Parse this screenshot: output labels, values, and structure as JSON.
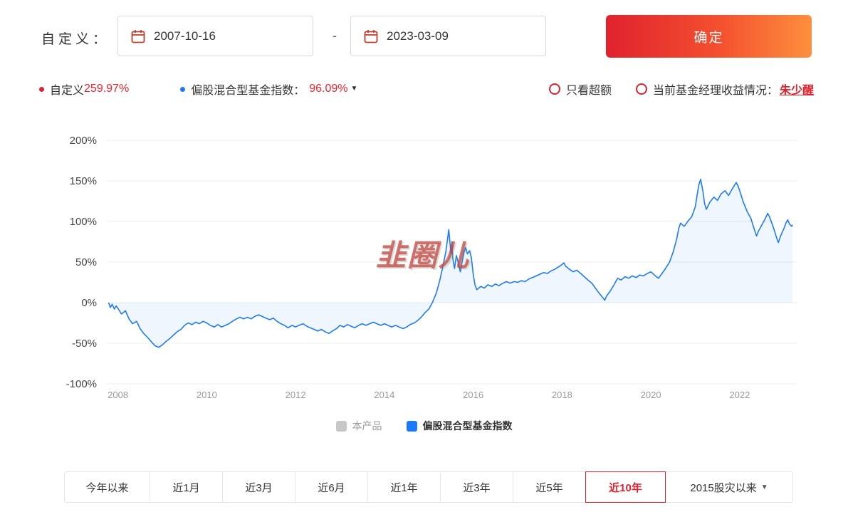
{
  "header": {
    "custom_label": "自定义：",
    "date_start": "2007-10-16",
    "date_end": "2023-03-09",
    "separator": "-",
    "confirm_label": "确定"
  },
  "legend_bar": {
    "series1_label": "自定义",
    "series1_value": "259.97%",
    "series2_label": "偏股混合型基金指数：",
    "series2_value": "96.09%",
    "excess_only_label": "只看超额",
    "manager_label": "当前基金经理收益情况：",
    "manager_name": "朱少醒"
  },
  "chart_data": {
    "type": "line",
    "title": "",
    "xlabel": "",
    "ylabel": "",
    "watermark": "韭圈儿",
    "grid": true,
    "legend_position": "bottom",
    "y_ticks": [
      "200%",
      "150%",
      "100%",
      "50%",
      "0%",
      "-50%",
      "-100%"
    ],
    "y_tick_values": [
      200,
      150,
      100,
      50,
      0,
      -50,
      -100
    ],
    "ylim": [
      -100,
      200
    ],
    "x_ticks": [
      "2008",
      "2010",
      "2012",
      "2014",
      "2016",
      "2018",
      "2020",
      "2022"
    ],
    "x_tick_values": [
      2008,
      2010,
      2012,
      2014,
      2016,
      2018,
      2020,
      2022
    ],
    "x_range": [
      2007.75,
      2023.3
    ],
    "legend": [
      {
        "label": "本产品",
        "color": "#c8c8c8",
        "muted": true
      },
      {
        "label": "偏股混合型基金指数",
        "color": "#1a7af8",
        "muted": false
      }
    ],
    "series": [
      {
        "name": "偏股混合型基金指数",
        "color": "#1f7bf4",
        "fill": "rgba(31,123,244,0.07)",
        "points": [
          [
            2007.79,
            0
          ],
          [
            2007.83,
            -6
          ],
          [
            2007.87,
            -2
          ],
          [
            2007.92,
            -8
          ],
          [
            2007.96,
            -4
          ],
          [
            2008.0,
            -7
          ],
          [
            2008.08,
            -14
          ],
          [
            2008.17,
            -10
          ],
          [
            2008.25,
            -20
          ],
          [
            2008.33,
            -26
          ],
          [
            2008.42,
            -23
          ],
          [
            2008.5,
            -32
          ],
          [
            2008.58,
            -38
          ],
          [
            2008.67,
            -43
          ],
          [
            2008.75,
            -48
          ],
          [
            2008.83,
            -53
          ],
          [
            2008.92,
            -55
          ],
          [
            2009.0,
            -52
          ],
          [
            2009.08,
            -48
          ],
          [
            2009.17,
            -44
          ],
          [
            2009.25,
            -40
          ],
          [
            2009.33,
            -36
          ],
          [
            2009.42,
            -33
          ],
          [
            2009.5,
            -28
          ],
          [
            2009.58,
            -25
          ],
          [
            2009.67,
            -27
          ],
          [
            2009.75,
            -24
          ],
          [
            2009.83,
            -26
          ],
          [
            2009.92,
            -23
          ],
          [
            2010.0,
            -25
          ],
          [
            2010.08,
            -28
          ],
          [
            2010.17,
            -30
          ],
          [
            2010.25,
            -27
          ],
          [
            2010.33,
            -30
          ],
          [
            2010.42,
            -28
          ],
          [
            2010.5,
            -26
          ],
          [
            2010.58,
            -23
          ],
          [
            2010.67,
            -20
          ],
          [
            2010.75,
            -18
          ],
          [
            2010.83,
            -20
          ],
          [
            2010.92,
            -18
          ],
          [
            2011.0,
            -20
          ],
          [
            2011.08,
            -17
          ],
          [
            2011.17,
            -15
          ],
          [
            2011.25,
            -17
          ],
          [
            2011.33,
            -19
          ],
          [
            2011.42,
            -21
          ],
          [
            2011.5,
            -19
          ],
          [
            2011.58,
            -23
          ],
          [
            2011.67,
            -26
          ],
          [
            2011.75,
            -28
          ],
          [
            2011.83,
            -31
          ],
          [
            2011.92,
            -28
          ],
          [
            2012.0,
            -30
          ],
          [
            2012.08,
            -28
          ],
          [
            2012.17,
            -26
          ],
          [
            2012.25,
            -29
          ],
          [
            2012.33,
            -31
          ],
          [
            2012.42,
            -33
          ],
          [
            2012.5,
            -35
          ],
          [
            2012.58,
            -33
          ],
          [
            2012.67,
            -36
          ],
          [
            2012.75,
            -38
          ],
          [
            2012.83,
            -35
          ],
          [
            2012.92,
            -32
          ],
          [
            2013.0,
            -28
          ],
          [
            2013.08,
            -30
          ],
          [
            2013.17,
            -27
          ],
          [
            2013.25,
            -29
          ],
          [
            2013.33,
            -31
          ],
          [
            2013.42,
            -28
          ],
          [
            2013.5,
            -26
          ],
          [
            2013.58,
            -28
          ],
          [
            2013.67,
            -26
          ],
          [
            2013.75,
            -24
          ],
          [
            2013.83,
            -26
          ],
          [
            2013.92,
            -28
          ],
          [
            2014.0,
            -26
          ],
          [
            2014.08,
            -28
          ],
          [
            2014.17,
            -30
          ],
          [
            2014.25,
            -28
          ],
          [
            2014.33,
            -30
          ],
          [
            2014.42,
            -32
          ],
          [
            2014.5,
            -30
          ],
          [
            2014.58,
            -27
          ],
          [
            2014.67,
            -25
          ],
          [
            2014.75,
            -22
          ],
          [
            2014.83,
            -18
          ],
          [
            2014.92,
            -12
          ],
          [
            2015.0,
            -8
          ],
          [
            2015.08,
            0
          ],
          [
            2015.17,
            12
          ],
          [
            2015.25,
            28
          ],
          [
            2015.33,
            48
          ],
          [
            2015.38,
            62
          ],
          [
            2015.42,
            78
          ],
          [
            2015.45,
            90
          ],
          [
            2015.48,
            72
          ],
          [
            2015.5,
            60
          ],
          [
            2015.52,
            75
          ],
          [
            2015.54,
            55
          ],
          [
            2015.58,
            42
          ],
          [
            2015.62,
            58
          ],
          [
            2015.67,
            48
          ],
          [
            2015.71,
            38
          ],
          [
            2015.75,
            50
          ],
          [
            2015.79,
            62
          ],
          [
            2015.83,
            68
          ],
          [
            2015.87,
            60
          ],
          [
            2015.92,
            64
          ],
          [
            2015.96,
            55
          ],
          [
            2016.0,
            35
          ],
          [
            2016.04,
            22
          ],
          [
            2016.08,
            16
          ],
          [
            2016.17,
            20
          ],
          [
            2016.25,
            18
          ],
          [
            2016.33,
            22
          ],
          [
            2016.42,
            20
          ],
          [
            2016.5,
            23
          ],
          [
            2016.58,
            21
          ],
          [
            2016.67,
            24
          ],
          [
            2016.75,
            26
          ],
          [
            2016.83,
            24
          ],
          [
            2016.92,
            26
          ],
          [
            2017.0,
            25
          ],
          [
            2017.08,
            27
          ],
          [
            2017.17,
            26
          ],
          [
            2017.25,
            29
          ],
          [
            2017.33,
            31
          ],
          [
            2017.42,
            33
          ],
          [
            2017.5,
            35
          ],
          [
            2017.58,
            37
          ],
          [
            2017.67,
            36
          ],
          [
            2017.75,
            39
          ],
          [
            2017.83,
            41
          ],
          [
            2017.92,
            44
          ],
          [
            2018.0,
            47
          ],
          [
            2018.04,
            49
          ],
          [
            2018.08,
            45
          ],
          [
            2018.17,
            41
          ],
          [
            2018.25,
            38
          ],
          [
            2018.33,
            40
          ],
          [
            2018.42,
            36
          ],
          [
            2018.5,
            32
          ],
          [
            2018.58,
            28
          ],
          [
            2018.67,
            24
          ],
          [
            2018.75,
            18
          ],
          [
            2018.83,
            12
          ],
          [
            2018.92,
            6
          ],
          [
            2018.96,
            3
          ],
          [
            2019.0,
            8
          ],
          [
            2019.08,
            14
          ],
          [
            2019.17,
            22
          ],
          [
            2019.25,
            30
          ],
          [
            2019.33,
            28
          ],
          [
            2019.42,
            32
          ],
          [
            2019.5,
            30
          ],
          [
            2019.58,
            33
          ],
          [
            2019.67,
            31
          ],
          [
            2019.75,
            34
          ],
          [
            2019.83,
            33
          ],
          [
            2019.92,
            36
          ],
          [
            2020.0,
            38
          ],
          [
            2020.08,
            34
          ],
          [
            2020.17,
            30
          ],
          [
            2020.25,
            36
          ],
          [
            2020.33,
            42
          ],
          [
            2020.42,
            50
          ],
          [
            2020.5,
            62
          ],
          [
            2020.58,
            78
          ],
          [
            2020.63,
            92
          ],
          [
            2020.67,
            98
          ],
          [
            2020.75,
            94
          ],
          [
            2020.83,
            100
          ],
          [
            2020.92,
            106
          ],
          [
            2021.0,
            118
          ],
          [
            2021.04,
            132
          ],
          [
            2021.08,
            145
          ],
          [
            2021.12,
            152
          ],
          [
            2021.17,
            138
          ],
          [
            2021.21,
            122
          ],
          [
            2021.25,
            115
          ],
          [
            2021.33,
            124
          ],
          [
            2021.42,
            130
          ],
          [
            2021.5,
            126
          ],
          [
            2021.58,
            134
          ],
          [
            2021.67,
            138
          ],
          [
            2021.75,
            132
          ],
          [
            2021.83,
            140
          ],
          [
            2021.92,
            148
          ],
          [
            2021.96,
            144
          ],
          [
            2022.0,
            138
          ],
          [
            2022.08,
            124
          ],
          [
            2022.17,
            112
          ],
          [
            2022.25,
            104
          ],
          [
            2022.33,
            90
          ],
          [
            2022.38,
            82
          ],
          [
            2022.42,
            88
          ],
          [
            2022.5,
            96
          ],
          [
            2022.58,
            104
          ],
          [
            2022.63,
            110
          ],
          [
            2022.67,
            106
          ],
          [
            2022.75,
            94
          ],
          [
            2022.83,
            80
          ],
          [
            2022.87,
            74
          ],
          [
            2022.92,
            82
          ],
          [
            2023.0,
            92
          ],
          [
            2023.04,
            98
          ],
          [
            2023.08,
            102
          ],
          [
            2023.12,
            97
          ],
          [
            2023.17,
            94
          ],
          [
            2023.19,
            96
          ]
        ]
      }
    ]
  },
  "range_tabs": {
    "items": [
      {
        "label": "今年以来",
        "active": false,
        "dropdown": false
      },
      {
        "label": "近1月",
        "active": false,
        "dropdown": false
      },
      {
        "label": "近3月",
        "active": false,
        "dropdown": false
      },
      {
        "label": "近6月",
        "active": false,
        "dropdown": false
      },
      {
        "label": "近1年",
        "active": false,
        "dropdown": false
      },
      {
        "label": "近3年",
        "active": false,
        "dropdown": false
      },
      {
        "label": "近5年",
        "active": false,
        "dropdown": false
      },
      {
        "label": "近10年",
        "active": true,
        "dropdown": false
      },
      {
        "label": "2015股灾以来",
        "active": false,
        "dropdown": true
      }
    ]
  }
}
